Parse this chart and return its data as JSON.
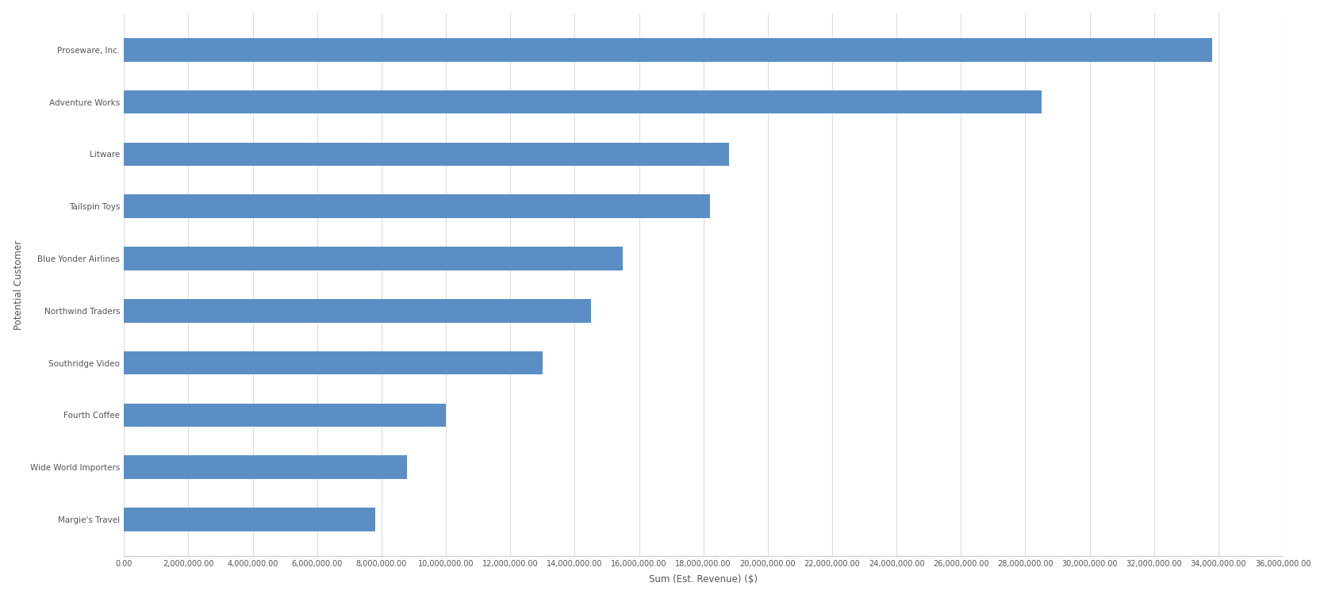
{
  "categories": [
    "Margie's Travel",
    "Wide World Importers",
    "Fourth Coffee",
    "Southridge Video",
    "Northwind Traders",
    "Blue Yonder Airlines",
    "Tailspin Toys",
    "Litware",
    "Adventure Works",
    "Proseware, Inc."
  ],
  "values": [
    7800000,
    8800000,
    10000000,
    13000000,
    14500000,
    15500000,
    18200000,
    18800000,
    28500000,
    33800000
  ],
  "bar_color": "#5b8ec4",
  "xlabel": "Sum (Est. Revenue) ($)",
  "ylabel": "Potential Customer",
  "background_color": "#ffffff",
  "grid_color": "#dddddd",
  "tick_label_color": "#555555",
  "axis_label_color": "#555555",
  "xlim": [
    0,
    36000000
  ],
  "xtick_interval": 2000000,
  "bar_height": 0.45,
  "label_fontsize": 7.5,
  "axis_label_fontsize": 8.5
}
